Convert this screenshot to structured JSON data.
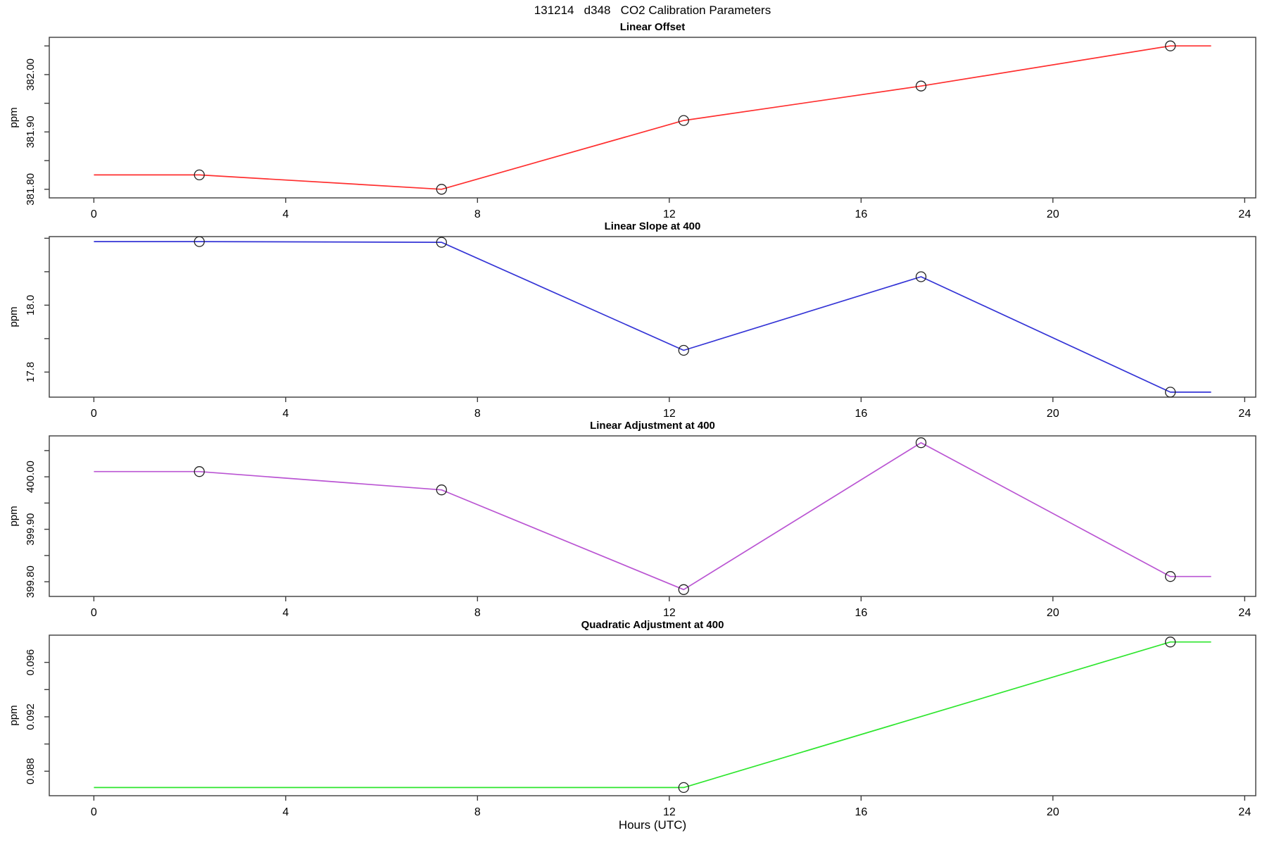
{
  "main_title": "131214   d348   CO2 Calibration Parameters",
  "x_axis": {
    "label": "Hours (UTC)",
    "xlim": [
      -0.93,
      24.23
    ],
    "ticks": [
      0,
      4,
      8,
      12,
      16,
      20,
      24
    ]
  },
  "style_colors": {
    "axis": "#3c3c3c",
    "marker": "#222222"
  },
  "chart_data": [
    {
      "type": "line",
      "title": "Linear Offset",
      "ylabel": "ppm",
      "color": "#ff2f2f",
      "ylim": [
        381.785,
        382.065
      ],
      "yticks": [
        {
          "v": 381.8,
          "label": "381.80"
        },
        {
          "v": 381.85,
          "label": ""
        },
        {
          "v": 381.9,
          "label": "381.90"
        },
        {
          "v": 381.95,
          "label": ""
        },
        {
          "v": 382.0,
          "label": "382.00"
        },
        {
          "v": 382.05,
          "label": ""
        }
      ],
      "line": [
        [
          0,
          381.825
        ],
        [
          2.2,
          381.825
        ],
        [
          7.25,
          381.8
        ],
        [
          12.3,
          381.92
        ],
        [
          17.25,
          381.98
        ],
        [
          22.45,
          382.05
        ],
        [
          23.3,
          382.05
        ]
      ],
      "points": [
        [
          2.2,
          381.825
        ],
        [
          7.25,
          381.8
        ],
        [
          12.3,
          381.92
        ],
        [
          17.25,
          381.98
        ],
        [
          22.45,
          382.05
        ]
      ]
    },
    {
      "type": "line",
      "title": "Linear Slope at 400",
      "ylabel": "ppm",
      "color": "#3434d6",
      "ylim": [
        17.725,
        18.205
      ],
      "yticks": [
        {
          "v": 17.8,
          "label": "17.8"
        },
        {
          "v": 17.9,
          "label": ""
        },
        {
          "v": 18.0,
          "label": "18.0"
        },
        {
          "v": 18.1,
          "label": ""
        },
        {
          "v": 18.2,
          "label": ""
        }
      ],
      "line": [
        [
          0,
          18.19
        ],
        [
          2.2,
          18.19
        ],
        [
          7.25,
          18.188
        ],
        [
          12.3,
          17.865
        ],
        [
          17.25,
          18.085
        ],
        [
          22.45,
          17.74
        ],
        [
          23.3,
          17.74
        ]
      ],
      "points": [
        [
          2.2,
          18.19
        ],
        [
          7.25,
          18.188
        ],
        [
          12.3,
          17.865
        ],
        [
          17.25,
          18.085
        ],
        [
          22.45,
          17.74
        ]
      ]
    },
    {
      "type": "line",
      "title": "Linear Adjustment at 400",
      "ylabel": "ppm",
      "color": "#ba55d3",
      "ylim": [
        399.772,
        400.078
      ],
      "yticks": [
        {
          "v": 399.8,
          "label": "399.80"
        },
        {
          "v": 399.85,
          "label": ""
        },
        {
          "v": 399.9,
          "label": "399.90"
        },
        {
          "v": 399.95,
          "label": ""
        },
        {
          "v": 400.0,
          "label": "400.00"
        },
        {
          "v": 400.05,
          "label": ""
        }
      ],
      "line": [
        [
          0,
          400.01
        ],
        [
          2.2,
          400.01
        ],
        [
          7.25,
          399.975
        ],
        [
          12.3,
          399.785
        ],
        [
          17.25,
          400.065
        ],
        [
          22.45,
          399.81
        ],
        [
          23.3,
          399.81
        ]
      ],
      "points": [
        [
          2.2,
          400.01
        ],
        [
          7.25,
          399.975
        ],
        [
          12.3,
          399.785
        ],
        [
          17.25,
          400.065
        ],
        [
          22.45,
          399.81
        ]
      ]
    },
    {
      "type": "line",
      "title": "Quadratic Adjustment at 400",
      "ylabel": "ppm",
      "color": "#2ee62e",
      "ylim": [
        0.0862,
        0.098
      ],
      "yticks": [
        {
          "v": 0.088,
          "label": "0.088"
        },
        {
          "v": 0.09,
          "label": ""
        },
        {
          "v": 0.092,
          "label": "0.092"
        },
        {
          "v": 0.094,
          "label": ""
        },
        {
          "v": 0.096,
          "label": "0.096"
        }
      ],
      "line": [
        [
          0,
          0.0868
        ],
        [
          12.3,
          0.0868
        ],
        [
          22.45,
          0.0975
        ],
        [
          23.3,
          0.0975
        ]
      ],
      "points": [
        [
          12.3,
          0.0868
        ],
        [
          22.45,
          0.0975
        ]
      ]
    }
  ]
}
